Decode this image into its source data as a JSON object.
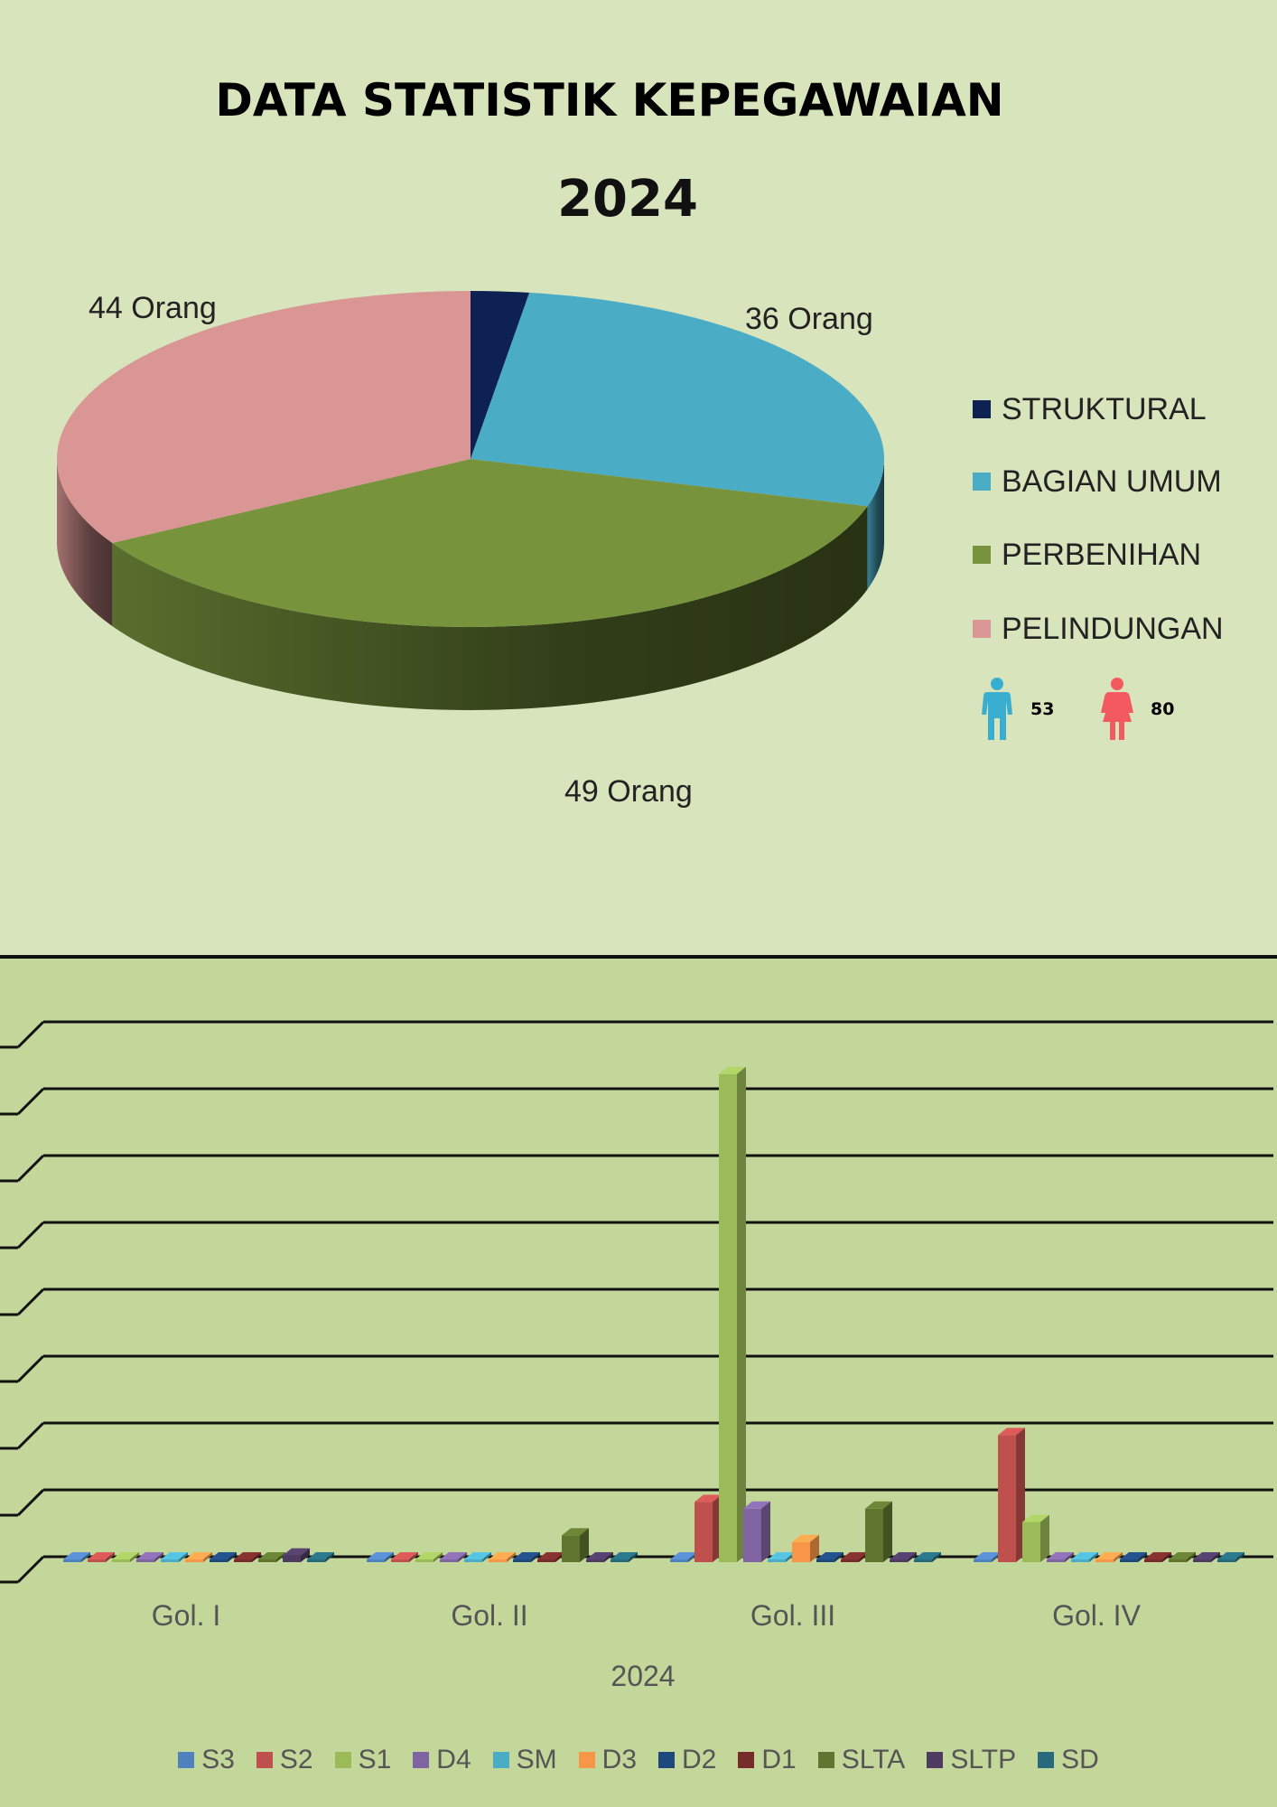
{
  "header": {
    "title": "DATA STATISTIK KEPEGAWAIAN",
    "year": "2024"
  },
  "gender": {
    "male": {
      "icon": "male-person-icon",
      "count": "53",
      "color": "#3aaed0"
    },
    "female": {
      "icon": "female-person-icon",
      "count": "80",
      "color": "#f25a5f"
    }
  },
  "chart_data": [
    {
      "type": "pie",
      "style": "3d",
      "title": "2024",
      "legend_position": "right",
      "slices": [
        {
          "name": "STRUKTURAL",
          "value": 3,
          "label": "",
          "color": "#0d2253"
        },
        {
          "name": "BAGIAN UMUM",
          "value": 36,
          "label": "36 Orang",
          "color": "#4bacc6"
        },
        {
          "name": "PERBENIHAN",
          "value": 49,
          "label": "49 Orang",
          "color": "#77933c"
        },
        {
          "name": "PELINDUNGAN",
          "value": 44,
          "label": "44 Orang",
          "color": "#d99694"
        }
      ]
    },
    {
      "type": "bar",
      "style": "3d-clustered",
      "categories": [
        "Gol. I",
        "Gol. II",
        "Gol. III",
        "Gol. IV"
      ],
      "xlabel": "2024",
      "ylabel": "",
      "ylim": [
        0,
        8
      ],
      "grid": true,
      "legend_position": "bottom",
      "series": [
        {
          "name": "S3",
          "color": "#4f81bd",
          "values": [
            0,
            0,
            0,
            0
          ]
        },
        {
          "name": "S2",
          "color": "#c0504d",
          "values": [
            0,
            0,
            0.9,
            1.9
          ]
        },
        {
          "name": "S1",
          "color": "#9bbb59",
          "values": [
            0,
            0,
            7.3,
            0.6
          ]
        },
        {
          "name": "D4",
          "color": "#8064a2",
          "values": [
            0,
            0,
            0.8,
            0
          ]
        },
        {
          "name": "SM",
          "color": "#4bacc6",
          "values": [
            0,
            0,
            0,
            0
          ]
        },
        {
          "name": "D3",
          "color": "#f79646",
          "values": [
            0,
            0,
            0.3,
            0
          ]
        },
        {
          "name": "D2",
          "color": "#1f497d",
          "values": [
            0,
            0,
            0,
            0
          ]
        },
        {
          "name": "D1",
          "color": "#772c2a",
          "values": [
            0,
            0,
            0,
            0
          ]
        },
        {
          "name": "SLTA",
          "color": "#5f7530",
          "values": [
            0,
            0.4,
            0.8,
            0
          ]
        },
        {
          "name": "SLTP",
          "color": "#4d3b62",
          "values": [
            0.1,
            0,
            0,
            0
          ]
        },
        {
          "name": "SD",
          "color": "#276a7c",
          "values": [
            0,
            0,
            0,
            0
          ]
        }
      ]
    }
  ]
}
